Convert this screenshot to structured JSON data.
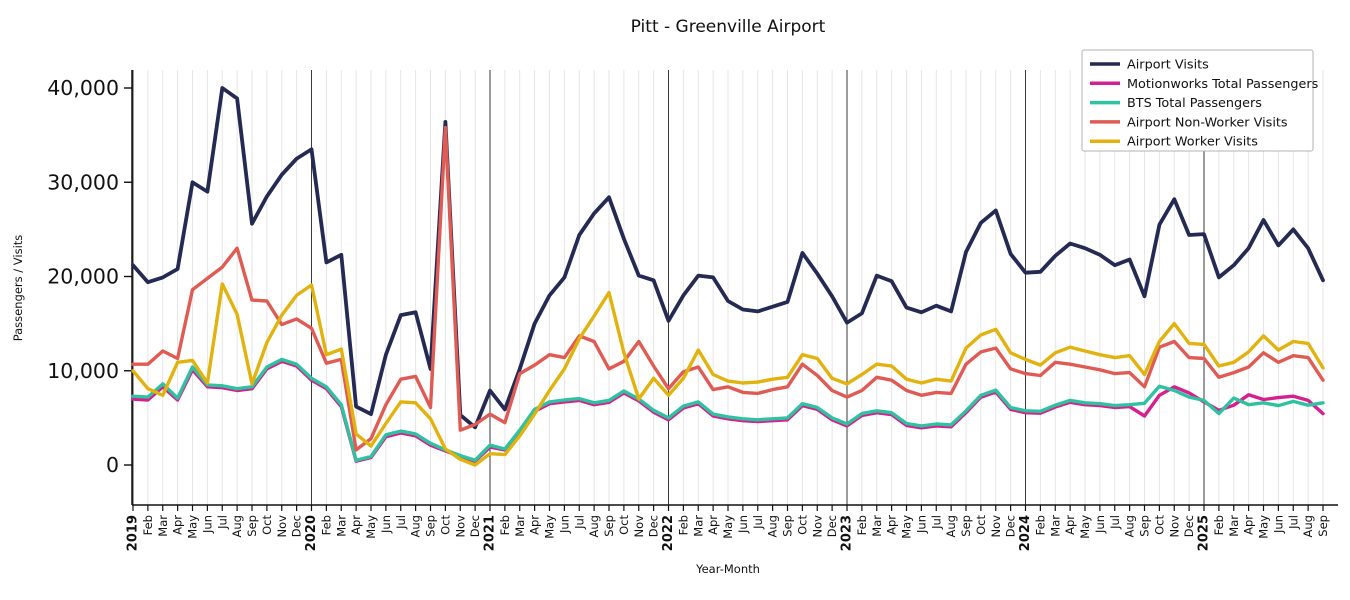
{
  "chart_data": {
    "type": "line",
    "title": "Pitt - Greenville Airport",
    "xlabel": "Year-Month",
    "ylabel": "Passengers / Visits",
    "ylim": [
      0,
      40000
    ],
    "yticks": [
      0,
      10000,
      20000,
      30000,
      40000
    ],
    "ytick_labels": [
      "0",
      "10,000",
      "20,000",
      "30,000",
      "40,000"
    ],
    "grid": "vertical line per month, darker vertical line at each January",
    "legend_position": "upper right",
    "x_labels": [
      "2019",
      "Feb",
      "Mar",
      "Apr",
      "May",
      "Jun",
      "Jul",
      "Aug",
      "Sep",
      "Oct",
      "Nov",
      "Dec",
      "2020",
      "Feb",
      "Mar",
      "Apr",
      "May",
      "Jun",
      "Jul",
      "Aug",
      "Sep",
      "Oct",
      "Nov",
      "Dec",
      "2021",
      "Feb",
      "Mar",
      "Apr",
      "May",
      "Jun",
      "Jul",
      "Aug",
      "Sep",
      "Oct",
      "Nov",
      "Dec",
      "2022",
      "Feb",
      "Mar",
      "Apr",
      "May",
      "Jun",
      "Jul",
      "Aug",
      "Sep",
      "Oct",
      "Nov",
      "Dec",
      "2023",
      "Feb",
      "Mar",
      "Apr",
      "May",
      "Jun",
      "Jul",
      "Aug",
      "Sep",
      "Oct",
      "Nov",
      "Dec",
      "2024",
      "Feb",
      "Mar",
      "Apr",
      "May",
      "Jun",
      "Jul",
      "Aug",
      "Sep",
      "Oct",
      "Nov",
      "Dec",
      "2025",
      "Feb",
      "Mar",
      "Apr",
      "May",
      "Jun",
      "Jul",
      "Aug",
      "Sep"
    ],
    "series": [
      {
        "name": "Airport Visits",
        "color": "#242a53",
        "values": [
          21200,
          19400,
          19900,
          20800,
          30000,
          29000,
          40000,
          38900,
          25600,
          28500,
          30800,
          32500,
          33500,
          21500,
          22300,
          6200,
          5400,
          11700,
          15900,
          16200,
          10200,
          36400,
          5300,
          4000,
          7900,
          5900,
          10200,
          15000,
          18000,
          19900,
          24400,
          26700,
          28400,
          24000,
          20100,
          19600,
          15300,
          18000,
          20100,
          19900,
          17400,
          16500,
          16300,
          16800,
          17300,
          22500,
          20300,
          17900,
          15100,
          16100,
          20100,
          19500,
          16700,
          16200,
          16900,
          16300,
          22600,
          25700,
          27000,
          22400,
          20400,
          20500,
          22200,
          23500,
          23000,
          22300,
          21200,
          21800,
          17900,
          25500,
          28200,
          24400,
          24500,
          19900,
          21200,
          23000,
          26000,
          23300,
          25000,
          23000,
          19600
        ]
      },
      {
        "name": "Motionworks Total Passengers",
        "color": "#d6208f",
        "values": [
          7000,
          6900,
          8300,
          6900,
          10100,
          8300,
          8200,
          7900,
          8100,
          10200,
          11000,
          10500,
          9000,
          8100,
          6200,
          400,
          800,
          3000,
          3400,
          3100,
          2100,
          1500,
          900,
          400,
          1900,
          1600,
          3500,
          5700,
          6500,
          6700,
          6850,
          6400,
          6650,
          7650,
          6800,
          5600,
          4800,
          6050,
          6500,
          5200,
          4900,
          4700,
          4600,
          4700,
          4800,
          6300,
          5900,
          4800,
          4150,
          5250,
          5550,
          5350,
          4200,
          3950,
          4150,
          4050,
          5550,
          7200,
          7750,
          5900,
          5550,
          5500,
          6150,
          6650,
          6400,
          6300,
          6100,
          6200,
          5200,
          7400,
          8300,
          7650,
          6700,
          5800,
          6350,
          7450,
          6950,
          7150,
          7300,
          6850,
          5450
        ]
      },
      {
        "name": "BTS Total Passengers",
        "color": "#2fc2a0",
        "values": [
          7300,
          7200,
          8600,
          7100,
          10400,
          8500,
          8400,
          8100,
          8300,
          10400,
          11200,
          10700,
          9200,
          8300,
          6400,
          500,
          900,
          3200,
          3600,
          3300,
          2300,
          1600,
          1000,
          500,
          2100,
          1700,
          3700,
          5900,
          6700,
          6900,
          7050,
          6600,
          6850,
          7850,
          7000,
          5800,
          5000,
          6250,
          6700,
          5400,
          5100,
          4900,
          4800,
          4900,
          5000,
          6500,
          6100,
          5000,
          4350,
          5450,
          5750,
          5550,
          4400,
          4150,
          4350,
          4250,
          5750,
          7400,
          7950,
          6100,
          5750,
          5700,
          6350,
          6850,
          6600,
          6500,
          6300,
          6400,
          6550,
          8350,
          7900,
          7200,
          6850,
          5450,
          7100,
          6400,
          6600,
          6300,
          6750,
          6350,
          6600
        ]
      },
      {
        "name": "Airport Non-Worker Visits",
        "color": "#e05b54",
        "values": [
          10700,
          10700,
          12100,
          11300,
          18600,
          19800,
          21000,
          23000,
          17500,
          17400,
          14900,
          15500,
          14500,
          10800,
          11200,
          1600,
          2800,
          6400,
          9100,
          9400,
          6100,
          35800,
          3700,
          4300,
          5400,
          4500,
          9700,
          10600,
          11700,
          11400,
          13700,
          13100,
          10200,
          11000,
          13100,
          10500,
          8100,
          9900,
          10400,
          8000,
          8300,
          7700,
          7600,
          8000,
          8300,
          10700,
          9500,
          7900,
          7200,
          7900,
          9300,
          9000,
          7900,
          7400,
          7700,
          7600,
          10700,
          12000,
          12400,
          10200,
          9700,
          9500,
          10900,
          10700,
          10400,
          10100,
          9700,
          9800,
          8300,
          12500,
          13100,
          11400,
          11300,
          9300,
          9800,
          10400,
          11900,
          10900,
          11600,
          11400,
          9000
        ]
      },
      {
        "name": "Airport Worker Visits",
        "color": "#e2b20e",
        "values": [
          10000,
          8100,
          7400,
          10900,
          11100,
          8700,
          19200,
          16000,
          8600,
          13000,
          15900,
          18000,
          19100,
          11700,
          12300,
          3300,
          2000,
          4400,
          6700,
          6600,
          4900,
          1700,
          600,
          0,
          1200,
          1100,
          3100,
          5400,
          7900,
          10200,
          13400,
          15800,
          18300,
          11900,
          7000,
          9200,
          7400,
          9200,
          12200,
          9600,
          8900,
          8700,
          8800,
          9100,
          9300,
          11700,
          11300,
          9200,
          8600,
          9600,
          10700,
          10500,
          9100,
          8700,
          9100,
          8900,
          12400,
          13800,
          14400,
          11900,
          11200,
          10600,
          11900,
          12500,
          12100,
          11700,
          11400,
          11600,
          9600,
          13100,
          15000,
          12900,
          12800,
          10500,
          10900,
          12000,
          13700,
          12200,
          13100,
          12900,
          10300
        ]
      }
    ]
  }
}
